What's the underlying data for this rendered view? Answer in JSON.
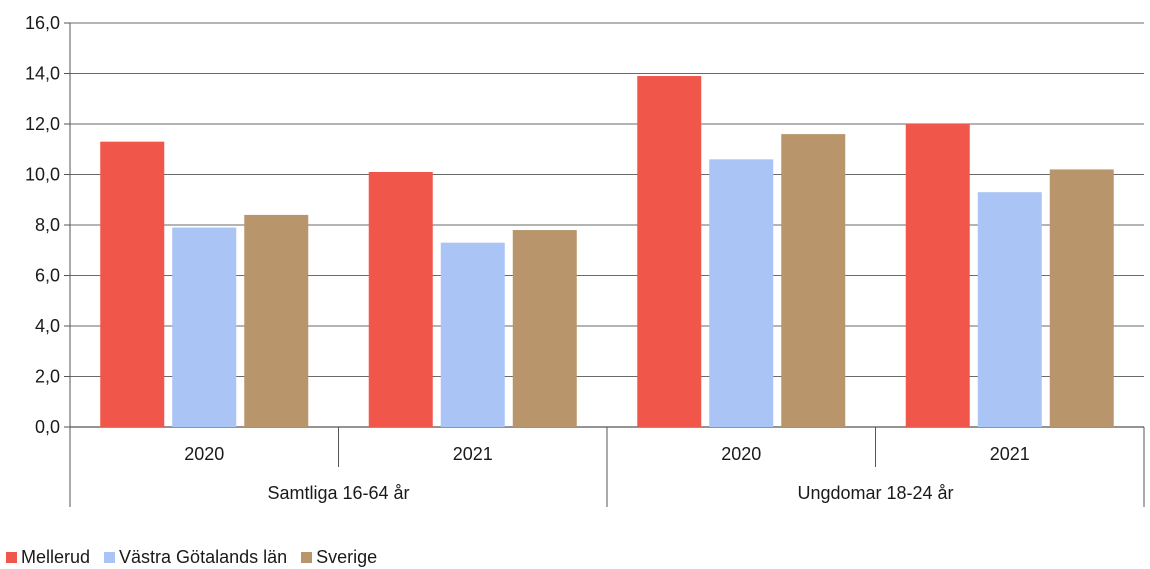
{
  "chart_data": {
    "type": "bar",
    "groups": [
      {
        "label": "Samtliga 16-64 år",
        "categories": [
          "2020",
          "2021"
        ]
      },
      {
        "label": "Ungdomar 18-24 år",
        "categories": [
          "2020",
          "2021"
        ]
      }
    ],
    "series": [
      {
        "name": "Mellerud",
        "color": "#f0574a",
        "values": [
          11.3,
          10.1,
          13.9,
          12.0
        ]
      },
      {
        "name": "Västra Götalands län",
        "color": "#a9c4f5",
        "values": [
          7.9,
          7.3,
          10.6,
          9.3
        ]
      },
      {
        "name": "Sverige",
        "color": "#b8956a",
        "values": [
          8.4,
          7.8,
          11.6,
          10.2
        ]
      }
    ],
    "ylim": [
      0,
      16
    ],
    "yticks": [
      "0,0",
      "2,0",
      "4,0",
      "6,0",
      "8,0",
      "10,0",
      "12,0",
      "14,0",
      "16,0"
    ],
    "grid": true,
    "legend_position": "bottom-left"
  }
}
